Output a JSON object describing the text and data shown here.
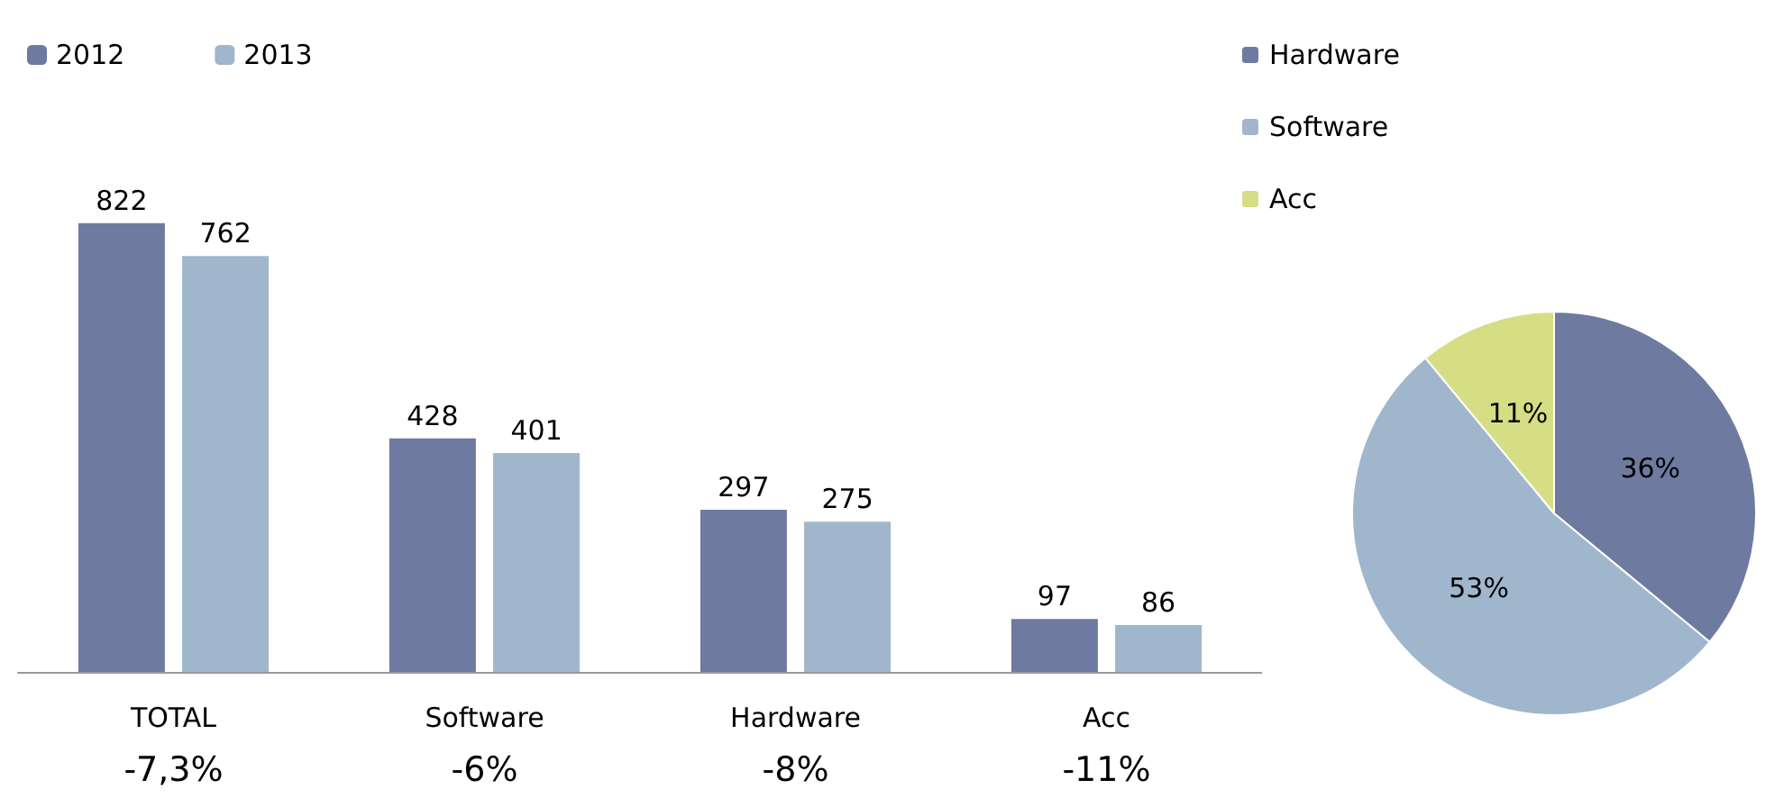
{
  "chart_data": [
    {
      "type": "bar",
      "categories": [
        "TOTAL",
        "Software",
        "Hardware",
        "Acc"
      ],
      "series": [
        {
          "name": "2012",
          "color": "#6f7aa0",
          "values": [
            822,
            428,
            297,
            97
          ]
        },
        {
          "name": "2013",
          "color": "#a0b6cc",
          "values": [
            762,
            401,
            275,
            86
          ]
        }
      ],
      "data_labels": true,
      "legend": "top left",
      "annotations": [
        "-7,3%",
        "-6%",
        "-8%",
        "-11%"
      ]
    },
    {
      "type": "pie",
      "categories": [
        "Hardware",
        "Software",
        "Acc"
      ],
      "values": [
        36,
        53,
        11
      ],
      "colors": [
        "#6f7aa0",
        "#a0b6cc",
        "#d5de84"
      ],
      "value_labels": [
        "36%",
        "53%",
        "11%"
      ],
      "legend": "top left"
    }
  ]
}
